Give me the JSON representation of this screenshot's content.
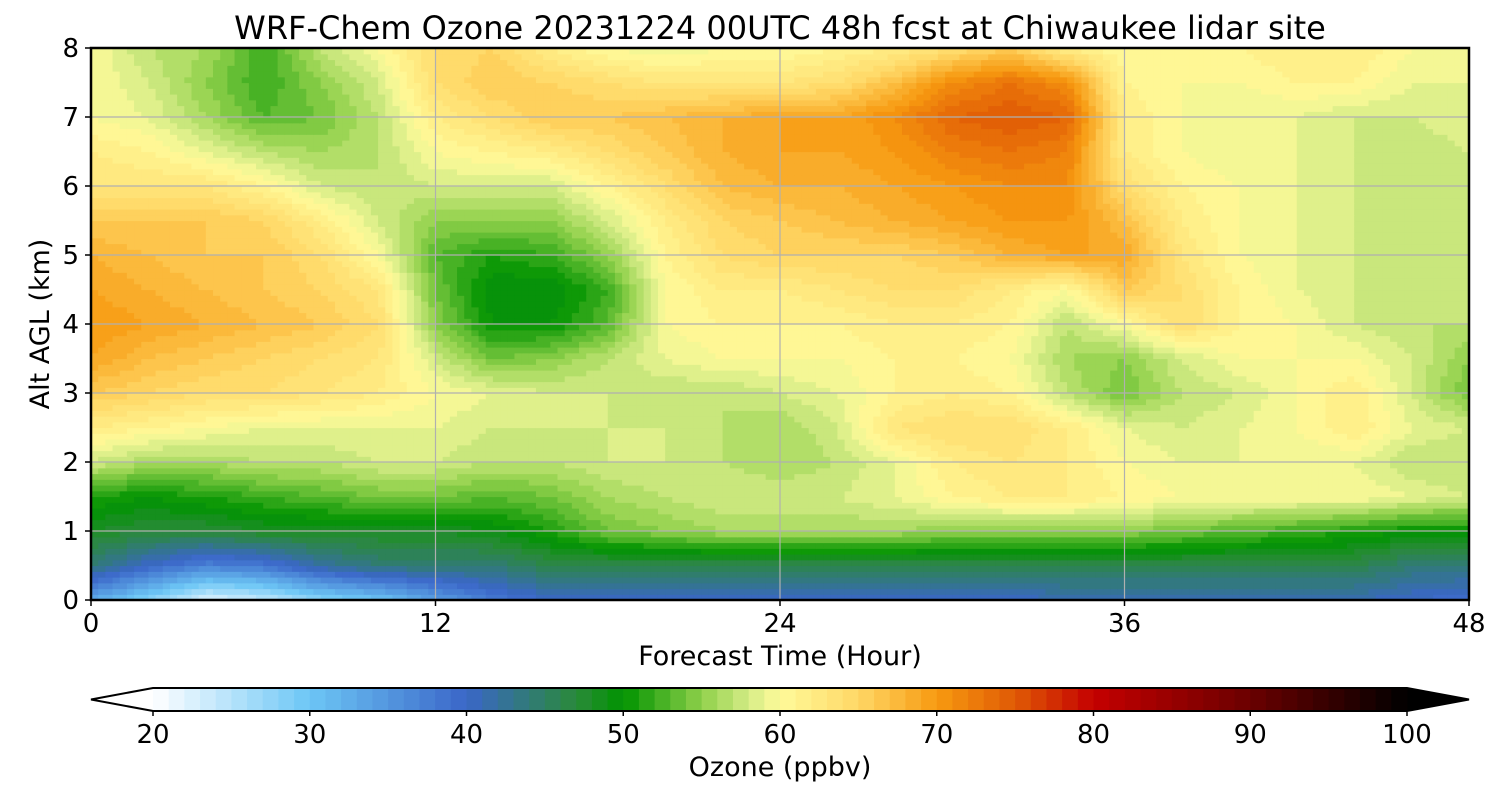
{
  "chart_data": {
    "type": "heatmap",
    "title": "WRF-Chem Ozone  20231224 00UTC 48h fcst at Chiwaukee lidar site",
    "xlabel": "Forecast Time (Hour)",
    "ylabel": "Alt AGL (km)",
    "xlim": [
      0,
      48
    ],
    "ylim": [
      0,
      8
    ],
    "x_ticks": [
      0,
      12,
      24,
      36,
      48
    ],
    "y_ticks": [
      0,
      1,
      2,
      3,
      4,
      5,
      6,
      7,
      8
    ],
    "grid": true,
    "colorbar": {
      "label": "Ozone  (ppbv)",
      "range": [
        20,
        100
      ],
      "ticks": [
        20,
        30,
        40,
        50,
        60,
        70,
        80,
        90,
        100
      ],
      "extend": "both",
      "colors": [
        {
          "v": 20,
          "c": "#ffffff"
        },
        {
          "v": 30,
          "c": "#6cc6f5"
        },
        {
          "v": 40,
          "c": "#3a66c8"
        },
        {
          "v": 47,
          "c": "#2a8a3a"
        },
        {
          "v": 50,
          "c": "#009300"
        },
        {
          "v": 55,
          "c": "#8fd04a"
        },
        {
          "v": 58,
          "c": "#d4ec86"
        },
        {
          "v": 60,
          "c": "#fffb9a"
        },
        {
          "v": 65,
          "c": "#ffd766"
        },
        {
          "v": 70,
          "c": "#f79a10"
        },
        {
          "v": 75,
          "c": "#e05a05"
        },
        {
          "v": 80,
          "c": "#c40000"
        },
        {
          "v": 90,
          "c": "#6a0000"
        },
        {
          "v": 100,
          "c": "#000000"
        }
      ]
    },
    "z_hours": [
      0,
      2,
      4,
      6,
      8,
      10,
      12,
      14,
      16,
      18,
      20,
      22,
      24,
      26,
      28,
      30,
      32,
      34,
      36,
      38,
      40,
      42,
      44,
      46,
      48
    ],
    "z_alt_km": [
      0,
      0.5,
      1,
      1.5,
      2,
      2.5,
      3,
      3.5,
      4,
      4.5,
      5,
      5.5,
      6,
      6.5,
      7,
      7.5,
      8
    ],
    "z_ppbv": [
      [
        33,
        28,
        22,
        24,
        28,
        30,
        34,
        38,
        40,
        40,
        40,
        40,
        40,
        40,
        40,
        40,
        40,
        41,
        41,
        41,
        41,
        41,
        41,
        40,
        39
      ],
      [
        44,
        40,
        37,
        38,
        42,
        44,
        44,
        44,
        46,
        46,
        46,
        46,
        46,
        46,
        46,
        46,
        46,
        46,
        46,
        46,
        46,
        46,
        46,
        44,
        44
      ],
      [
        48,
        47,
        47,
        48,
        48,
        48,
        48,
        49,
        51,
        54,
        55,
        56,
        56,
        56,
        56,
        55,
        55,
        55,
        55,
        54,
        53,
        52,
        51,
        50,
        50
      ],
      [
        51,
        50,
        51,
        52,
        53,
        54,
        54,
        53,
        54,
        56,
        57,
        58,
        58,
        58,
        59,
        61,
        62,
        62,
        61,
        60,
        60,
        60,
        60,
        59,
        58
      ],
      [
        58,
        56,
        56,
        57,
        57,
        58,
        58,
        57,
        57,
        58,
        58,
        57,
        56,
        57,
        59,
        62,
        63,
        62,
        60,
        59,
        59,
        59,
        59,
        57,
        57
      ],
      [
        62,
        61,
        60,
        59,
        59,
        59,
        59,
        58,
        58,
        58,
        58,
        57,
        56,
        58,
        63,
        64,
        64,
        62,
        59,
        58,
        59,
        60,
        62,
        59,
        58
      ],
      [
        66,
        65,
        64,
        64,
        63,
        62,
        60,
        59,
        58,
        58,
        57,
        57,
        58,
        59,
        61,
        62,
        61,
        57,
        54,
        57,
        58,
        60,
        62,
        58,
        54
      ],
      [
        69,
        67,
        66,
        65,
        64,
        63,
        58,
        54,
        55,
        57,
        59,
        60,
        60,
        60,
        61,
        61,
        60,
        56,
        55,
        58,
        60,
        60,
        60,
        58,
        55
      ],
      [
        70,
        69,
        68,
        67,
        66,
        64,
        55,
        50,
        50,
        53,
        60,
        61,
        61,
        61,
        62,
        62,
        61,
        57,
        60,
        64,
        61,
        60,
        58,
        57,
        57
      ],
      [
        69,
        68,
        67,
        66,
        65,
        63,
        54,
        49,
        49,
        52,
        60,
        62,
        62,
        63,
        64,
        64,
        62,
        60,
        66,
        64,
        61,
        59,
        58,
        57,
        57
      ],
      [
        68,
        67,
        66,
        66,
        64,
        60,
        53,
        51,
        52,
        55,
        61,
        64,
        65,
        65,
        65,
        66,
        68,
        69,
        69,
        63,
        60,
        59,
        58,
        57,
        57
      ],
      [
        66,
        66,
        66,
        65,
        62,
        58,
        55,
        55,
        55,
        58,
        62,
        65,
        66,
        67,
        68,
        69,
        70,
        70,
        67,
        62,
        60,
        59,
        58,
        57,
        57
      ],
      [
        63,
        63,
        63,
        61,
        58,
        57,
        58,
        58,
        58,
        61,
        64,
        67,
        68,
        68,
        69,
        70,
        71,
        71,
        64,
        61,
        60,
        59,
        58,
        57,
        58
      ],
      [
        62,
        61,
        59,
        57,
        56,
        57,
        60,
        61,
        62,
        64,
        66,
        68,
        69,
        69,
        70,
        72,
        73,
        72,
        62,
        60,
        59,
        59,
        58,
        57,
        58
      ],
      [
        60,
        59,
        56,
        53,
        54,
        57,
        62,
        64,
        66,
        66,
        67,
        68,
        69,
        69,
        71,
        74,
        75,
        74,
        62,
        60,
        59,
        59,
        58,
        58,
        59
      ],
      [
        60,
        58,
        55,
        52,
        55,
        58,
        64,
        66,
        65,
        64,
        63,
        63,
        63,
        64,
        67,
        71,
        73,
        71,
        61,
        60,
        60,
        61,
        61,
        59,
        59
      ],
      [
        60,
        57,
        56,
        52,
        57,
        60,
        64,
        65,
        62,
        60,
        59,
        60,
        60,
        61,
        62,
        64,
        66,
        62,
        60,
        60,
        61,
        62,
        62,
        60,
        59
      ]
    ]
  }
}
